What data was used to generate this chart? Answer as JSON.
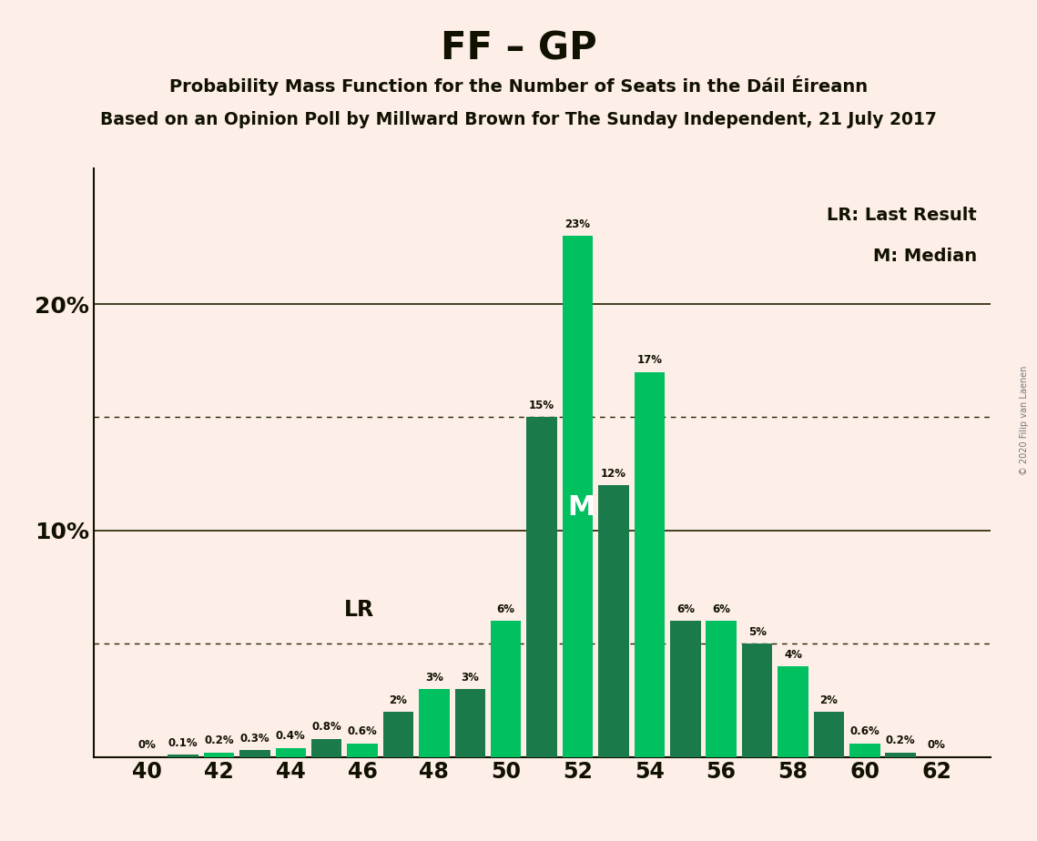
{
  "title": "FF – GP",
  "subtitle1": "Probability Mass Function for the Number of Seats in the Dáil Éireann",
  "subtitle2": "Based on an Opinion Poll by Millward Brown for The Sunday Independent, 21 July 2017",
  "watermark": "© 2020 Filip van Laenen",
  "seats": [
    40,
    41,
    42,
    43,
    44,
    45,
    46,
    47,
    48,
    49,
    50,
    51,
    52,
    53,
    54,
    55,
    56,
    57,
    58,
    59,
    60,
    61,
    62
  ],
  "values": [
    0.0,
    0.1,
    0.2,
    0.3,
    0.4,
    0.8,
    0.6,
    2.0,
    3.0,
    3.0,
    6.0,
    15.0,
    23.0,
    12.0,
    17.0,
    6.0,
    6.0,
    5.0,
    4.0,
    2.0,
    0.6,
    0.2,
    0.0
  ],
  "dark_color": "#1a7a4a",
  "bright_color": "#00c060",
  "lr_seat": 46,
  "median_seat": 52,
  "background_color": "#fdeee8",
  "solid_lines": [
    10.0,
    20.0
  ],
  "dotted_lines": [
    5.0,
    15.0
  ],
  "xlabel_ticks": [
    40,
    42,
    44,
    46,
    48,
    50,
    52,
    54,
    56,
    58,
    60,
    62
  ],
  "ytick_labels": [
    "10%",
    "20%"
  ],
  "ytick_vals": [
    10,
    20
  ],
  "ylim": [
    0,
    26
  ],
  "xlim": [
    38.5,
    63.5
  ]
}
